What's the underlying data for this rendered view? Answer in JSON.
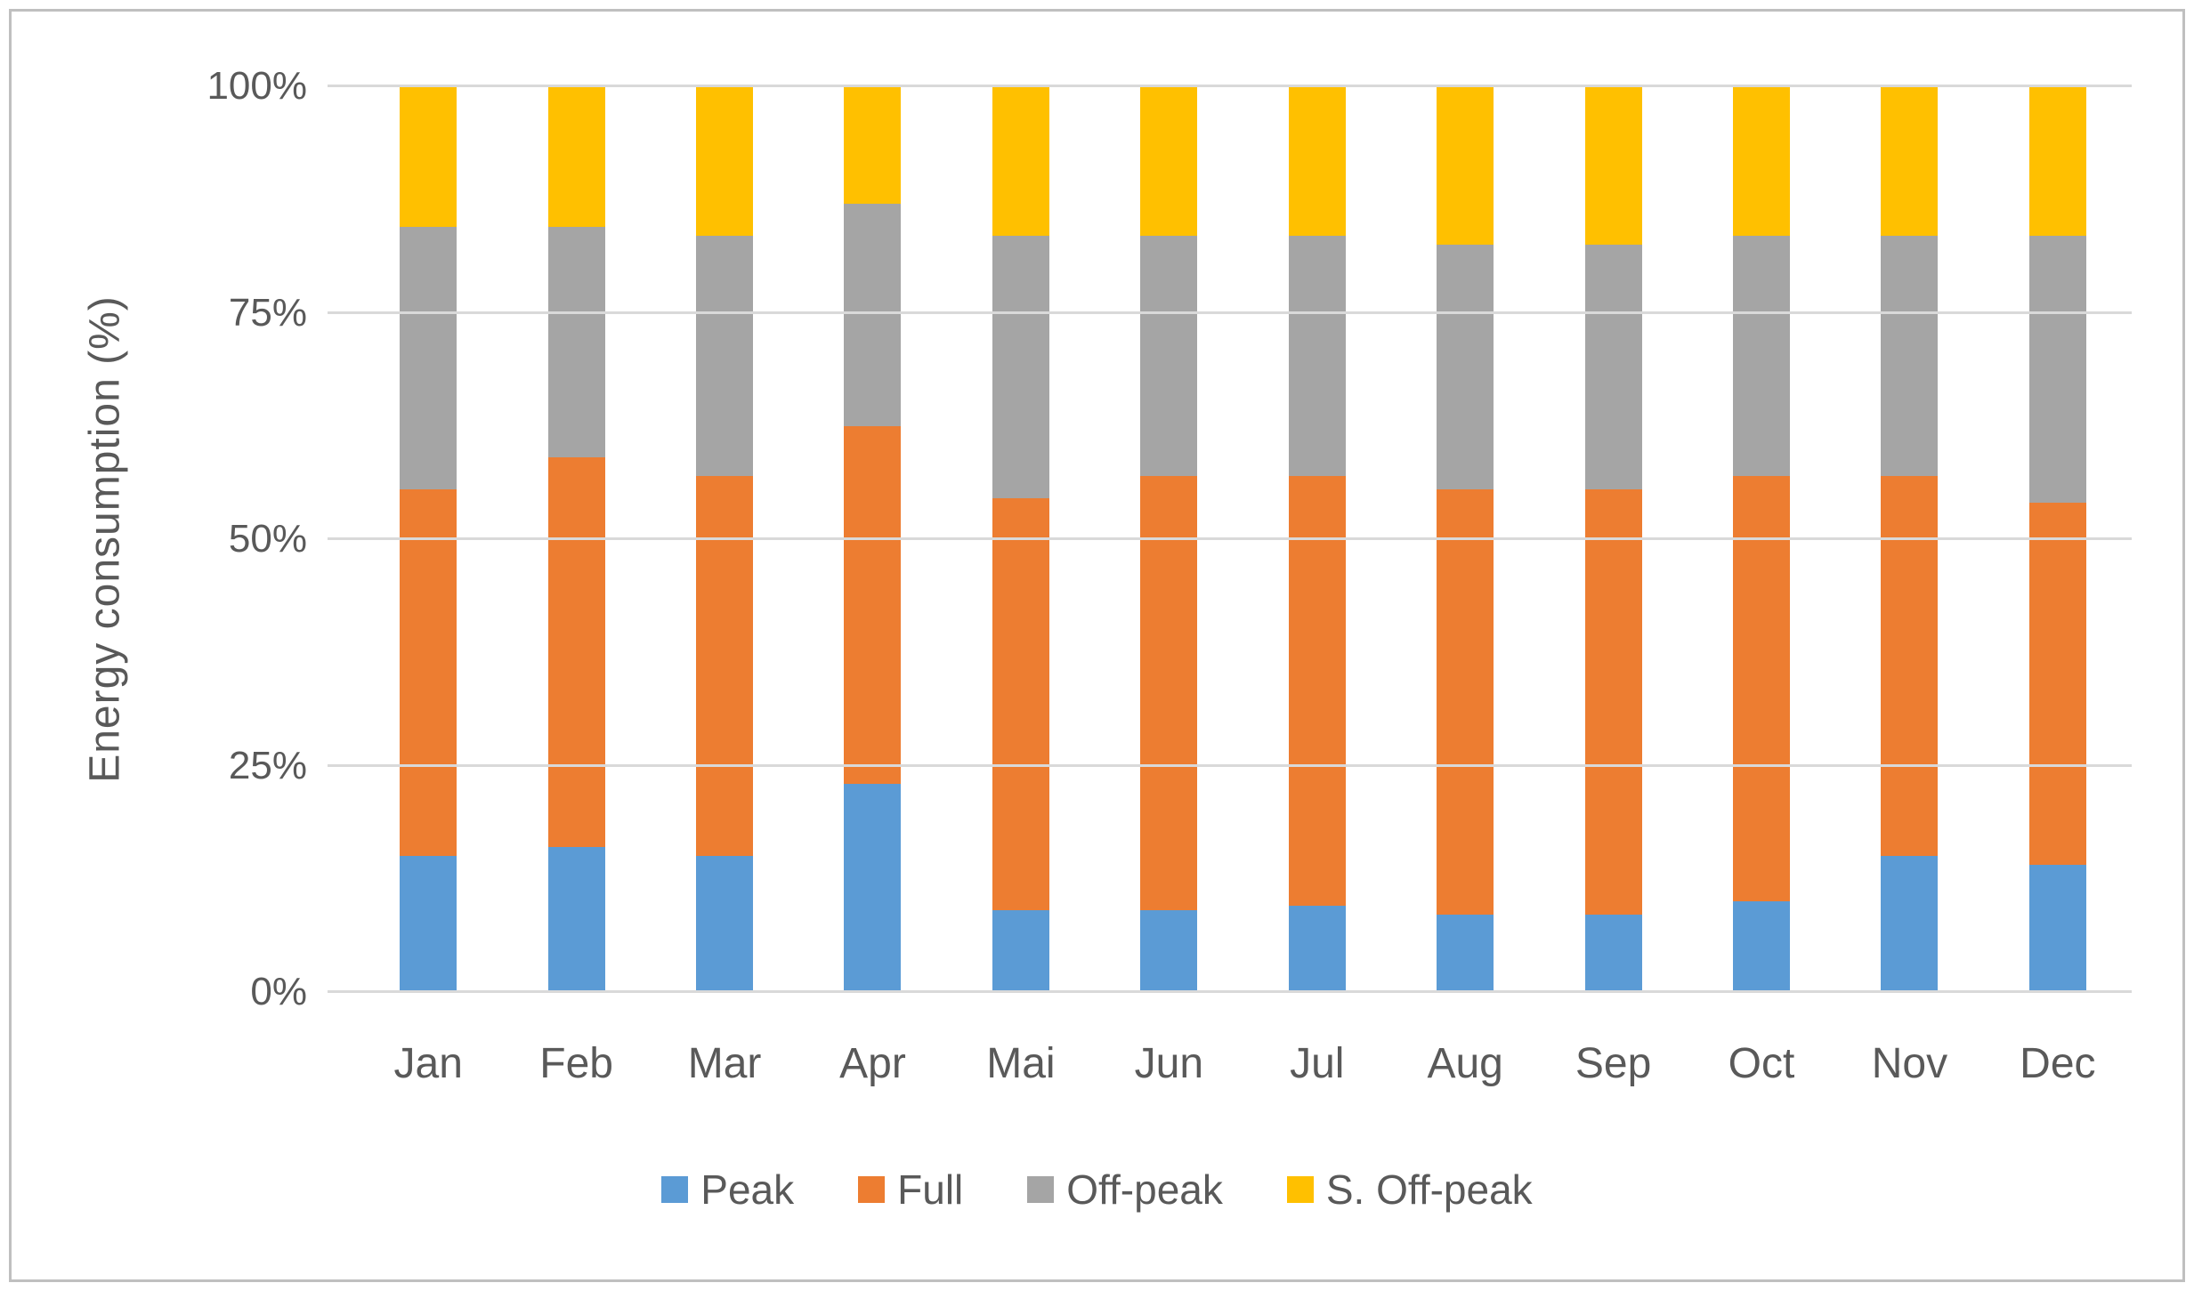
{
  "chart_data": {
    "type": "bar",
    "stacked": true,
    "normalized_100pct": true,
    "title": "",
    "xlabel": "",
    "ylabel": "Energy consumption (%)",
    "ylim": [
      0,
      100
    ],
    "grid": true,
    "legend_position": "bottom",
    "yticks": [
      {
        "label": "0%",
        "value": 0
      },
      {
        "label": "25%",
        "value": 25
      },
      {
        "label": "50%",
        "value": 50
      },
      {
        "label": "75%",
        "value": 75
      },
      {
        "label": "100%",
        "value": 100
      }
    ],
    "categories": [
      "Jan",
      "Feb",
      "Mar",
      "Apr",
      "Mai",
      "Jun",
      "Jul",
      "Aug",
      "Sep",
      "Oct",
      "Nov",
      "Dec"
    ],
    "series": [
      {
        "name": "Peak",
        "color": "#5B9BD5",
        "values": [
          15,
          16,
          15,
          23,
          9,
          9,
          9.5,
          8.5,
          8.5,
          10,
          15,
          14
        ]
      },
      {
        "name": "Full",
        "color": "#ED7D31",
        "values": [
          40.5,
          43,
          42,
          39.5,
          45.5,
          48,
          47.5,
          47,
          47,
          47,
          42,
          40
        ]
      },
      {
        "name": "Off-peak",
        "color": "#A5A5A5",
        "values": [
          29,
          25.5,
          26.5,
          24.5,
          29,
          26.5,
          26.5,
          27,
          27,
          26.5,
          26.5,
          29.5
        ]
      },
      {
        "name": "S. Off-peak",
        "color": "#FFC000",
        "values": [
          15.5,
          15.5,
          16.5,
          13,
          16.5,
          16.5,
          16.5,
          17.5,
          17.5,
          16.5,
          16.5,
          16.5
        ]
      }
    ]
  },
  "style_colors": {
    "axis_text": "#595959",
    "gridline": "#D9D9D9",
    "frame_border": "#BFBFBF",
    "background": "#FFFFFF"
  }
}
